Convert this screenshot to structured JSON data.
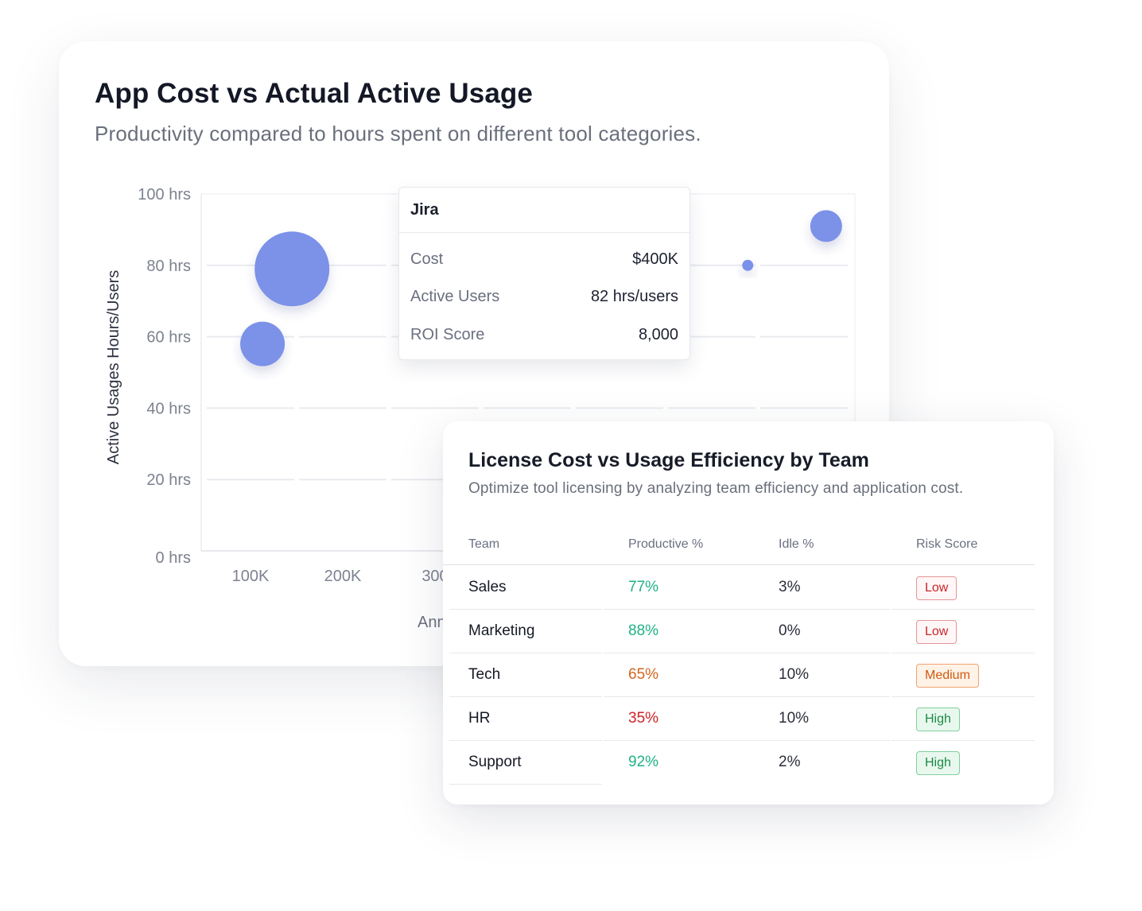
{
  "chart": {
    "title": "App Cost vs Actual Active Usage",
    "subtitle": "Productivity compared to hours spent on different tool categories."
  },
  "chart_data": {
    "type": "scatter",
    "title": "App Cost vs Actual Active Usage",
    "subtitle": "Productivity compared to hours spent on different tool categories.",
    "xlabel": "Ann",
    "ylabel": "Active Usages Hours/Users",
    "x_ticks": [
      "100K",
      "200K",
      "300"
    ],
    "y_ticks": [
      "100 hrs",
      "80 hrs",
      "60 hrs",
      "40 hrs",
      "20 hrs",
      "0 hrs"
    ],
    "xlim": [
      50000,
      700000
    ],
    "ylim": [
      0,
      100
    ],
    "grid": true,
    "bubble_color": "#7c91e8",
    "points": [
      {
        "x": 145000,
        "y": 79,
        "size": 47
      },
      {
        "x": 113000,
        "y": 58,
        "size": 28
      },
      {
        "x": 639000,
        "y": 80,
        "size": 7
      },
      {
        "x": 724000,
        "y": 91,
        "size": 20
      }
    ],
    "tooltip": {
      "name": "Jira",
      "rows": [
        {
          "label": "Cost",
          "value": "$400K"
        },
        {
          "label": "Active Users",
          "value": "82 hrs/users"
        },
        {
          "label": "ROI Score",
          "value": "8,000"
        }
      ]
    }
  },
  "table": {
    "title": "License Cost vs Usage Efficiency by Team",
    "subtitle": "Optimize tool licensing by analyzing team efficiency and application cost.",
    "headers": [
      "Team",
      "Productive %",
      "Idle %",
      "Risk Score"
    ],
    "rows": [
      {
        "team": "Sales",
        "productive": "77%",
        "idle": "3%",
        "risk": "Low"
      },
      {
        "team": "Marketing",
        "productive": "88%",
        "idle": "0%",
        "risk": "Low"
      },
      {
        "team": "Tech",
        "productive": "65%",
        "idle": "10%",
        "risk": "Medium"
      },
      {
        "team": "HR",
        "productive": "35%",
        "idle": "10%",
        "risk": "High"
      },
      {
        "team": "Support",
        "productive": "92%",
        "idle": "2%",
        "risk": "High"
      }
    ]
  },
  "colors": {
    "bubble": "#7c91e8",
    "productive_green": "#1fb286",
    "productive_orange": "#d2651e",
    "productive_red": "#cf2226",
    "risk_low": "#c9252c",
    "risk_medium": "#cf5a11",
    "risk_high": "#1a8a45"
  }
}
